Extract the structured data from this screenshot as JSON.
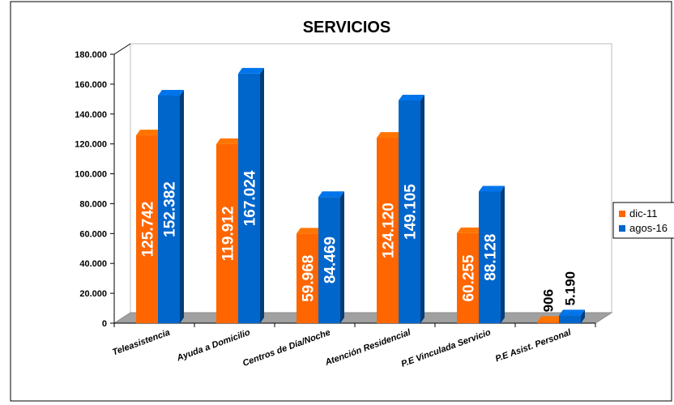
{
  "chart_data": {
    "type": "bar",
    "title": "SERVICIOS",
    "categories": [
      "Teleasistencia",
      "Ayuda a Domicilio",
      "Centros de Día/Noche",
      "Atención Residencial",
      "P.E Vinculada Servicio",
      "P.E Asist. Personal"
    ],
    "series": [
      {
        "name": "dic-11",
        "color": "#ff6600",
        "values": [
          125742,
          119912,
          59968,
          124120,
          60255,
          906
        ],
        "labels": [
          "125.742",
          "119.912",
          "59.968",
          "124.120",
          "60.255",
          "906"
        ]
      },
      {
        "name": "agos-16",
        "color": "#0066cc",
        "values": [
          152382,
          167024,
          84469,
          149105,
          88128,
          5190
        ],
        "labels": [
          "152.382",
          "167.024",
          "84.469",
          "149.105",
          "88.128",
          "5.190"
        ]
      }
    ],
    "ylim": [
      0,
      180000
    ],
    "yticks": [
      "0",
      "20.000",
      "40.000",
      "60.000",
      "80.000",
      "100.000",
      "120.000",
      "140.000",
      "160.000",
      "180.000"
    ],
    "xlabel": "",
    "ylabel": "",
    "grid": false,
    "legend": "right"
  }
}
